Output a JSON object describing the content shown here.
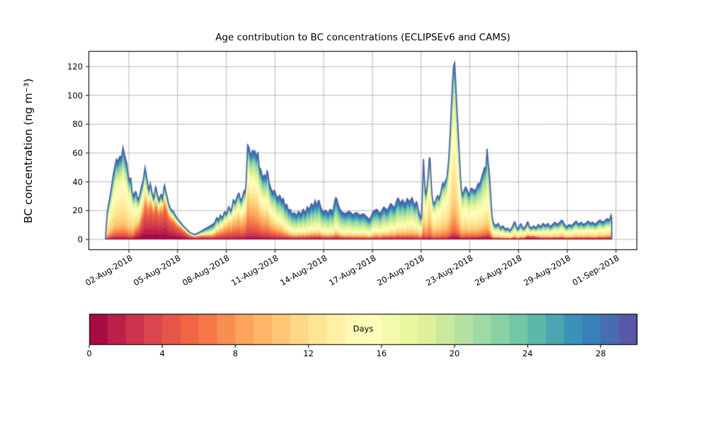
{
  "title": "Age contribution to BC concentrations (ECLIPSEv6 and CAMS)",
  "colors": {
    "background": "#ffffff",
    "grid": "#b0b0b0",
    "axis": "#000000",
    "total_line": "#4c66ad"
  },
  "chart_data": {
    "type": "area",
    "stacked": true,
    "title": "Age contribution to BC concentrations (ECLIPSEv6 and CAMS)",
    "xlabel": "",
    "ylabel": "BC concentration (ng m⁻³)",
    "x_unit": "days since 2018-08-01 00:00",
    "y_ticks": [
      0,
      20,
      40,
      60,
      80,
      100,
      120
    ],
    "ylim": [
      -7.4,
      130.8
    ],
    "x_tick_days": [
      1,
      4,
      7,
      10,
      13,
      16,
      19,
      22,
      25,
      28,
      31
    ],
    "x_tick_labels": [
      "02-Aug-2018",
      "05-Aug-2018",
      "08-Aug-2018",
      "11-Aug-2018",
      "14-Aug-2018",
      "17-Aug-2018",
      "20-Aug-2018",
      "23-Aug-2018",
      "26-Aug-2018",
      "29-Aug-2018",
      "01-Sep-2018"
    ],
    "grid": true,
    "n_age_layers": 30,
    "age_range_days": [
      0,
      30
    ],
    "colorbar": {
      "label": "Days",
      "ticks": [
        0,
        4,
        8,
        12,
        16,
        20,
        24,
        28
      ],
      "range": [
        0,
        30
      ],
      "colormap": "Spectral",
      "anchors": [
        "#9e0142",
        "#d53e4f",
        "#f46d43",
        "#fdae61",
        "#fee08b",
        "#ffffbf",
        "#e6f598",
        "#abdda4",
        "#66c2a5",
        "#3288bd",
        "#5e4fa2"
      ]
    },
    "total_series": [
      [
        -0.44,
        0
      ],
      [
        -0.38,
        12
      ],
      [
        -0.32,
        19.6
      ],
      [
        -0.1,
        34
      ],
      [
        0.04,
        45
      ],
      [
        0.23,
        56
      ],
      [
        0.33,
        54
      ],
      [
        0.45,
        58
      ],
      [
        0.55,
        57
      ],
      [
        0.64,
        64
      ],
      [
        0.77,
        57
      ],
      [
        0.87,
        53
      ],
      [
        0.99,
        42
      ],
      [
        1.12,
        42.5
      ],
      [
        1.2,
        33.5
      ],
      [
        1.32,
        30
      ],
      [
        1.42,
        34
      ],
      [
        1.54,
        28
      ],
      [
        1.64,
        29.5
      ],
      [
        1.78,
        37
      ],
      [
        1.88,
        41
      ],
      [
        2,
        50
      ],
      [
        2.11,
        42.5
      ],
      [
        2.22,
        34
      ],
      [
        2.32,
        39
      ],
      [
        2.43,
        32.5
      ],
      [
        2.55,
        28
      ],
      [
        2.65,
        37.7
      ],
      [
        2.75,
        31.2
      ],
      [
        2.87,
        27
      ],
      [
        2.98,
        32
      ],
      [
        3.08,
        28
      ],
      [
        3.18,
        38.7
      ],
      [
        3.3,
        32.4
      ],
      [
        3.45,
        24.7
      ],
      [
        3.59,
        21
      ],
      [
        3.74,
        19.6
      ],
      [
        3.88,
        16.3
      ],
      [
        4.03,
        14
      ],
      [
        4.17,
        12.2
      ],
      [
        4.32,
        9.8
      ],
      [
        4.54,
        7.3
      ],
      [
        4.75,
        4.9
      ],
      [
        5.04,
        3.3
      ],
      [
        5.33,
        4.9
      ],
      [
        5.63,
        6.9
      ],
      [
        5.84,
        8.2
      ],
      [
        6.06,
        9.8
      ],
      [
        6.28,
        11.4
      ],
      [
        6.42,
        15.5
      ],
      [
        6.53,
        13
      ],
      [
        6.64,
        17.1
      ],
      [
        6.76,
        14.7
      ],
      [
        6.9,
        19.6
      ],
      [
        7.01,
        17
      ],
      [
        7.15,
        22.8
      ],
      [
        7.3,
        19.6
      ],
      [
        7.44,
        27.8
      ],
      [
        7.54,
        25.3
      ],
      [
        7.66,
        29.4
      ],
      [
        7.78,
        32.7
      ],
      [
        7.88,
        27
      ],
      [
        7.98,
        28.6
      ],
      [
        8.1,
        34.3
      ],
      [
        8.17,
        32.7
      ],
      [
        8.22,
        38
      ],
      [
        8.26,
        50
      ],
      [
        8.3,
        65.8
      ],
      [
        8.4,
        64
      ],
      [
        8.52,
        57.3
      ],
      [
        8.62,
        62.3
      ],
      [
        8.69,
        59.8
      ],
      [
        8.76,
        61.5
      ],
      [
        8.86,
        57.3
      ],
      [
        8.95,
        60.6
      ],
      [
        9.05,
        47.4
      ],
      [
        9.12,
        49
      ],
      [
        9.24,
        42.5
      ],
      [
        9.34,
        45
      ],
      [
        9.44,
        42.5
      ],
      [
        9.53,
        48.6
      ],
      [
        9.63,
        40
      ],
      [
        9.73,
        35.9
      ],
      [
        9.85,
        32.7
      ],
      [
        9.97,
        34.3
      ],
      [
        10.07,
        30.5
      ],
      [
        10.19,
        28.6
      ],
      [
        10.29,
        31
      ],
      [
        10.41,
        27
      ],
      [
        10.51,
        28.6
      ],
      [
        10.62,
        22.9
      ],
      [
        10.73,
        24.5
      ],
      [
        10.84,
        19.6
      ],
      [
        10.94,
        21.2
      ],
      [
        11.06,
        17.1
      ],
      [
        11.19,
        18.8
      ],
      [
        11.31,
        16.3
      ],
      [
        11.45,
        19.6
      ],
      [
        11.6,
        17.1
      ],
      [
        11.74,
        21.2
      ],
      [
        11.86,
        17.9
      ],
      [
        12,
        22.9
      ],
      [
        12.11,
        20.4
      ],
      [
        12.25,
        25.3
      ],
      [
        12.35,
        22
      ],
      [
        12.47,
        27
      ],
      [
        12.58,
        22.9
      ],
      [
        12.69,
        27.8
      ],
      [
        12.83,
        22
      ],
      [
        12.98,
        18.8
      ],
      [
        13.12,
        20.4
      ],
      [
        13.27,
        17.9
      ],
      [
        13.41,
        21.2
      ],
      [
        13.56,
        18.8
      ],
      [
        13.7,
        27.8
      ],
      [
        13.77,
        29.4
      ],
      [
        13.89,
        24.5
      ],
      [
        13.99,
        21.2
      ],
      [
        14.14,
        18.8
      ],
      [
        14.35,
        17.9
      ],
      [
        14.57,
        19.6
      ],
      [
        14.79,
        17.1
      ],
      [
        15.01,
        18.8
      ],
      [
        15.23,
        16.7
      ],
      [
        15.45,
        17.9
      ],
      [
        15.61,
        16.1
      ],
      [
        15.83,
        13.6
      ],
      [
        16.04,
        19.3
      ],
      [
        16.26,
        21
      ],
      [
        16.48,
        17.7
      ],
      [
        16.7,
        22.6
      ],
      [
        16.92,
        20.1
      ],
      [
        17.13,
        25.1
      ],
      [
        17.35,
        21.8
      ],
      [
        17.57,
        29.2
      ],
      [
        17.72,
        25.1
      ],
      [
        17.86,
        27.6
      ],
      [
        18.01,
        24.3
      ],
      [
        18.15,
        28.4
      ],
      [
        18.3,
        25.9
      ],
      [
        18.44,
        29.2
      ],
      [
        18.59,
        23.4
      ],
      [
        18.73,
        26.7
      ],
      [
        18.84,
        19.3
      ],
      [
        18.92,
        17.7
      ],
      [
        19.02,
        12.8
      ],
      [
        19.08,
        30
      ],
      [
        19.14,
        57.9
      ],
      [
        19.2,
        42.3
      ],
      [
        19.28,
        29.2
      ],
      [
        19.39,
        39
      ],
      [
        19.46,
        48.8
      ],
      [
        19.53,
        60.3
      ],
      [
        19.6,
        43.9
      ],
      [
        19.68,
        29.2
      ],
      [
        19.78,
        24.3
      ],
      [
        19.89,
        26.7
      ],
      [
        20.01,
        30.8
      ],
      [
        20.11,
        28.4
      ],
      [
        20.21,
        32.4
      ],
      [
        20.33,
        39.8
      ],
      [
        20.4,
        37.3
      ],
      [
        20.5,
        40.6
      ],
      [
        20.59,
        43.1
      ],
      [
        20.7,
        55.4
      ],
      [
        20.77,
        69.3
      ],
      [
        20.84,
        86.6
      ],
      [
        20.91,
        103.8
      ],
      [
        20.98,
        118.6
      ],
      [
        21.06,
        124
      ],
      [
        21.13,
        109.6
      ],
      [
        21.2,
        91.5
      ],
      [
        21.27,
        78.4
      ],
      [
        21.35,
        60.3
      ],
      [
        21.42,
        43.9
      ],
      [
        21.49,
        33.2
      ],
      [
        21.56,
        30.8
      ],
      [
        21.67,
        34.9
      ],
      [
        21.75,
        36.5
      ],
      [
        21.85,
        34.1
      ],
      [
        21.96,
        30
      ],
      [
        22.07,
        35.7
      ],
      [
        22.19,
        34.9
      ],
      [
        22.29,
        34.1
      ],
      [
        22.39,
        34.9
      ],
      [
        22.51,
        39
      ],
      [
        22.61,
        38.2
      ],
      [
        22.73,
        43.1
      ],
      [
        22.83,
        47.2
      ],
      [
        22.92,
        50.5
      ],
      [
        22.99,
        48.8
      ],
      [
        23.06,
        63.6
      ],
      [
        23.14,
        52.1
      ],
      [
        23.21,
        45.6
      ],
      [
        23.28,
        32.4
      ],
      [
        23.36,
        16.1
      ],
      [
        23.46,
        11.2
      ],
      [
        23.6,
        9.5
      ],
      [
        23.75,
        11.2
      ],
      [
        23.89,
        7.9
      ],
      [
        24.04,
        9.5
      ],
      [
        24.18,
        7.1
      ],
      [
        24.33,
        7.9
      ],
      [
        24.47,
        6.2
      ],
      [
        24.62,
        8.7
      ],
      [
        24.77,
        12.8
      ],
      [
        24.84,
        9.5
      ],
      [
        24.98,
        7.1
      ],
      [
        25.13,
        11.2
      ],
      [
        25.27,
        7.9
      ],
      [
        25.42,
        8.7
      ],
      [
        25.57,
        12.8
      ],
      [
        25.64,
        9.5
      ],
      [
        25.78,
        7.9
      ],
      [
        25.93,
        9.5
      ],
      [
        26.08,
        7.9
      ],
      [
        26.22,
        10.4
      ],
      [
        26.37,
        8.7
      ],
      [
        26.51,
        11.2
      ],
      [
        26.66,
        9.5
      ],
      [
        26.81,
        11.2
      ],
      [
        26.95,
        8.7
      ],
      [
        27.1,
        10.4
      ],
      [
        27.24,
        12
      ],
      [
        27.39,
        10.4
      ],
      [
        27.54,
        12
      ],
      [
        27.68,
        13.6
      ],
      [
        27.83,
        10.4
      ],
      [
        27.97,
        8.7
      ],
      [
        28.12,
        10.4
      ],
      [
        28.26,
        9.5
      ],
      [
        28.41,
        11.2
      ],
      [
        28.55,
        12.8
      ],
      [
        28.7,
        10.4
      ],
      [
        28.85,
        12
      ],
      [
        28.99,
        10.4
      ],
      [
        29.14,
        11.2
      ],
      [
        29.28,
        12.8
      ],
      [
        29.43,
        11.2
      ],
      [
        29.57,
        12
      ],
      [
        29.72,
        10.4
      ],
      [
        29.86,
        12
      ],
      [
        30.01,
        13.6
      ],
      [
        30.16,
        12
      ],
      [
        30.3,
        12.8
      ],
      [
        30.45,
        14.4
      ],
      [
        30.6,
        13.6
      ],
      [
        30.7,
        16.9
      ],
      [
        30.74,
        14.5
      ]
    ],
    "age_band_edges_days": [
      0,
      2,
      6,
      11,
      16,
      22,
      30
    ],
    "age_profile_keyframes": [
      {
        "t": -0.45,
        "w": [
          0.02,
          0.05,
          0.13,
          0.48,
          0.18,
          0.14
        ]
      },
      {
        "t": 1.2,
        "w": [
          0.02,
          0.05,
          0.13,
          0.48,
          0.18,
          0.14
        ]
      },
      {
        "t": 1.9,
        "w": [
          0.14,
          0.26,
          0.16,
          0.2,
          0.12,
          0.12
        ]
      },
      {
        "t": 2.4,
        "w": [
          0.22,
          0.38,
          0.15,
          0.05,
          0.1,
          0.1
        ]
      },
      {
        "t": 4.3,
        "w": [
          0.22,
          0.38,
          0.15,
          0.05,
          0.1,
          0.1
        ]
      },
      {
        "t": 5.2,
        "w": [
          0.12,
          0.28,
          0.18,
          0.08,
          0.17,
          0.17
        ]
      },
      {
        "t": 6.1,
        "w": [
          0.05,
          0.12,
          0.16,
          0.12,
          0.27,
          0.28
        ]
      },
      {
        "t": 7.0,
        "w": [
          0.04,
          0.2,
          0.3,
          0.2,
          0.15,
          0.11
        ]
      },
      {
        "t": 8.6,
        "w": [
          0.03,
          0.13,
          0.26,
          0.28,
          0.18,
          0.12
        ]
      },
      {
        "t": 9.8,
        "w": [
          0.03,
          0.1,
          0.2,
          0.26,
          0.23,
          0.18
        ]
      },
      {
        "t": 11.0,
        "w": [
          0.04,
          0.05,
          0.1,
          0.18,
          0.32,
          0.31
        ]
      },
      {
        "t": 13.0,
        "w": [
          0.04,
          0.05,
          0.08,
          0.16,
          0.34,
          0.33
        ]
      },
      {
        "t": 15.0,
        "w": [
          0.03,
          0.04,
          0.08,
          0.16,
          0.34,
          0.35
        ]
      },
      {
        "t": 17.5,
        "w": [
          0.03,
          0.05,
          0.1,
          0.2,
          0.32,
          0.3
        ]
      },
      {
        "t": 18.9,
        "w": [
          0.03,
          0.05,
          0.12,
          0.26,
          0.3,
          0.24
        ]
      },
      {
        "t": 19.3,
        "w": [
          0.02,
          0.04,
          0.22,
          0.41,
          0.21,
          0.1
        ]
      },
      {
        "t": 21.06,
        "w": [
          0.02,
          0.03,
          0.15,
          0.49,
          0.21,
          0.1
        ]
      },
      {
        "t": 21.9,
        "w": [
          0.03,
          0.04,
          0.14,
          0.38,
          0.28,
          0.13
        ]
      },
      {
        "t": 23.1,
        "w": [
          0.03,
          0.04,
          0.12,
          0.33,
          0.32,
          0.16
        ]
      },
      {
        "t": 23.6,
        "w": [
          0.06,
          0.04,
          0.06,
          0.38,
          0.22,
          0.24
        ]
      },
      {
        "t": 25.2,
        "w": [
          0.06,
          0.05,
          0.06,
          0.36,
          0.22,
          0.25
        ]
      },
      {
        "t": 25.8,
        "w": [
          0.15,
          0.1,
          0.06,
          0.29,
          0.18,
          0.22
        ]
      },
      {
        "t": 26.4,
        "w": [
          0.07,
          0.05,
          0.06,
          0.36,
          0.21,
          0.25
        ]
      },
      {
        "t": 28.5,
        "w": [
          0.06,
          0.05,
          0.07,
          0.36,
          0.22,
          0.24
        ]
      },
      {
        "t": 30.8,
        "w": [
          0.06,
          0.05,
          0.08,
          0.36,
          0.22,
          0.23
        ]
      }
    ]
  }
}
